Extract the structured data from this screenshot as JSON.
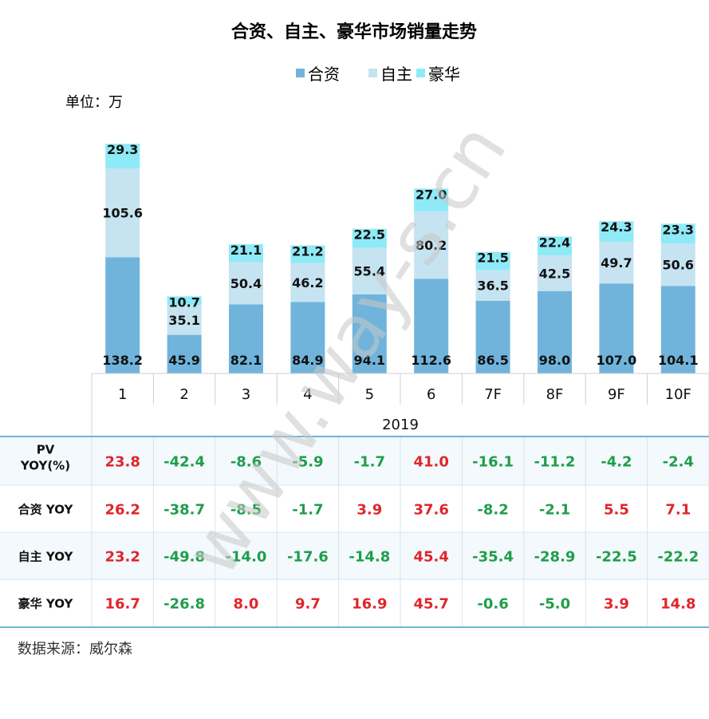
{
  "chart_data": {
    "type": "bar",
    "stacked": true,
    "title": "合资、自主、豪华市场销量走势",
    "unit_label": "单位：万",
    "year_label": "2019",
    "categories": [
      "1",
      "2",
      "3",
      "4",
      "5",
      "6",
      "7F",
      "8F",
      "9F",
      "10F"
    ],
    "series": [
      {
        "name": "合资",
        "color": "#70b4dc",
        "values": [
          138.2,
          45.9,
          82.1,
          84.9,
          94.1,
          112.6,
          86.5,
          98.0,
          107.0,
          104.1
        ]
      },
      {
        "name": "自主",
        "color": "#c5e3f0",
        "values": [
          105.6,
          35.1,
          50.4,
          46.2,
          55.4,
          80.2,
          36.5,
          42.5,
          49.7,
          50.6
        ]
      },
      {
        "name": "豪华",
        "color": "#8eeaf7",
        "values": [
          29.3,
          10.7,
          21.1,
          21.2,
          22.5,
          27.0,
          21.5,
          22.4,
          24.3,
          23.3
        ]
      }
    ],
    "legend_position": "top-center",
    "grid": false
  },
  "yoy_table": {
    "positive_color": "#e0262b",
    "negative_color": "#1f9e4a",
    "rows": [
      {
        "label_lines": [
          "PV",
          "YOY(%)"
        ],
        "values": [
          "23.8",
          "-42.4",
          "-8.6",
          "-5.9",
          "-1.7",
          "41.0",
          "-16.1",
          "-11.2",
          "-4.2",
          "-2.4"
        ]
      },
      {
        "label_lines": [
          "合资 YOY"
        ],
        "values": [
          "26.2",
          "-38.7",
          "-8.5",
          "-1.7",
          "3.9",
          "37.6",
          "-8.2",
          "-2.1",
          "5.5",
          "7.1"
        ]
      },
      {
        "label_lines": [
          "自主 YOY"
        ],
        "values": [
          "23.2",
          "-49.8",
          "-14.0",
          "-17.6",
          "-14.8",
          "45.4",
          "-35.4",
          "-28.9",
          "-22.5",
          "-22.2"
        ]
      },
      {
        "label_lines": [
          "豪华 YOY"
        ],
        "values": [
          "16.7",
          "-26.8",
          "8.0",
          "9.7",
          "16.9",
          "45.7",
          "-0.6",
          "-5.0",
          "3.9",
          "14.8"
        ]
      }
    ]
  },
  "source": "数据来源：威尔森",
  "watermark": "www.way-s.cn"
}
